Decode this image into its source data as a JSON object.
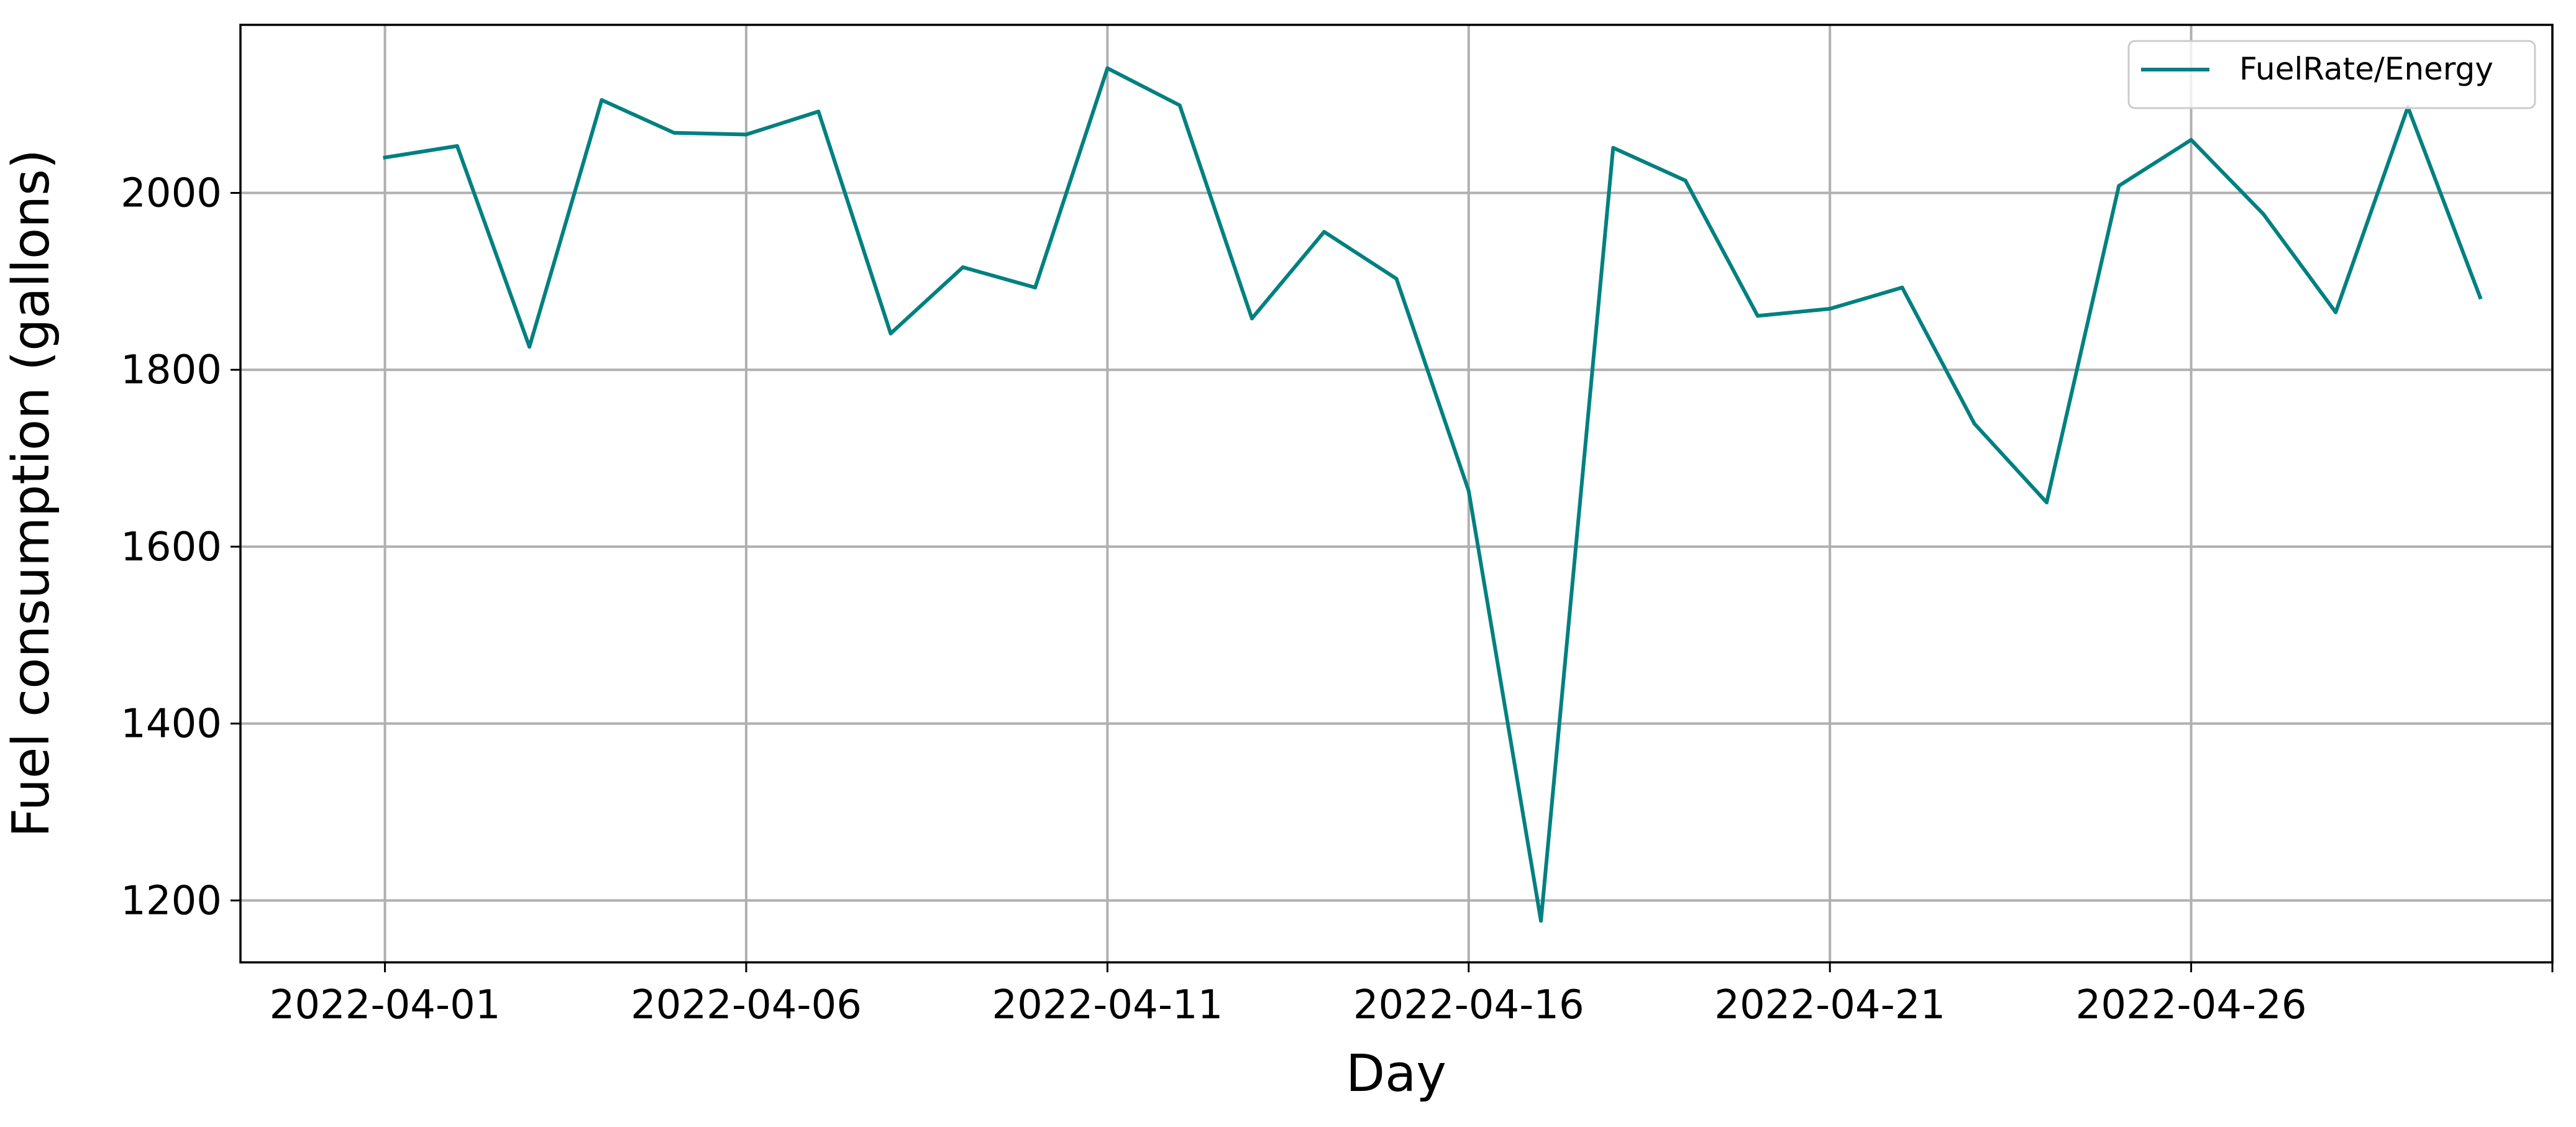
{
  "chart_data": {
    "type": "line",
    "xlabel": "Day",
    "ylabel": "Fuel consumption (gallons)",
    "x_tick_labels": [
      "2022-04-01",
      "2022-04-06",
      "2022-04-11",
      "2022-04-16",
      "2022-04-21",
      "2022-04-26",
      ""
    ],
    "x_ticks": [
      "2022-04-01",
      "2022-04-06",
      "2022-04-11",
      "2022-04-16",
      "2022-04-21",
      "2022-04-26",
      "2022-05-01"
    ],
    "xlim": [
      "2022-03-30",
      "2022-05-01"
    ],
    "y_ticks": [
      1200,
      1400,
      1600,
      1800,
      2000
    ],
    "ylim": [
      1130,
      2190
    ],
    "grid": true,
    "legend_position": "top-right",
    "x": [
      "2022-04-01",
      "2022-04-02",
      "2022-04-03",
      "2022-04-04",
      "2022-04-05",
      "2022-04-06",
      "2022-04-07",
      "2022-04-08",
      "2022-04-09",
      "2022-04-10",
      "2022-04-11",
      "2022-04-12",
      "2022-04-13",
      "2022-04-14",
      "2022-04-15",
      "2022-04-16",
      "2022-04-17",
      "2022-04-18",
      "2022-04-19",
      "2022-04-20",
      "2022-04-21",
      "2022-04-22",
      "2022-04-23",
      "2022-04-24",
      "2022-04-25",
      "2022-04-26",
      "2022-04-27",
      "2022-04-28",
      "2022-04-29",
      "2022-04-30"
    ],
    "series": [
      {
        "name": "FuelRate/Energy",
        "color": "#008080",
        "values": [
          2040,
          2053,
          1826,
          2105,
          2068,
          2066,
          2092,
          1841,
          1916,
          1893,
          2141,
          2099,
          1858,
          1956,
          1903,
          1663,
          1177,
          2051,
          2014,
          1861,
          1869,
          1893,
          1739,
          1650,
          2008,
          2060,
          1976,
          1865,
          2097,
          1882
        ]
      }
    ]
  }
}
